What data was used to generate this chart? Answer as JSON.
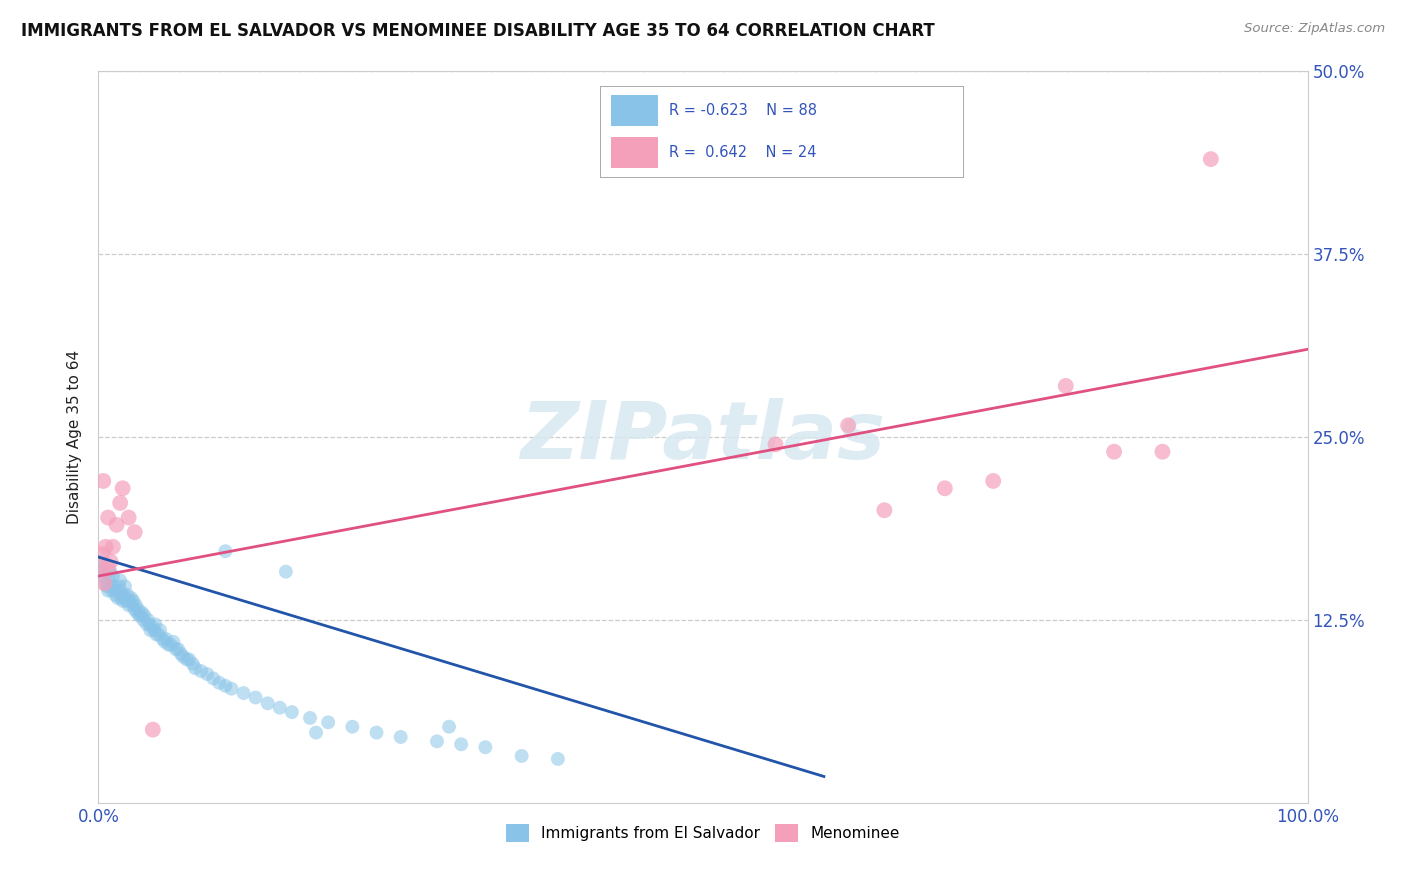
{
  "title": "IMMIGRANTS FROM EL SALVADOR VS MENOMINEE DISABILITY AGE 35 TO 64 CORRELATION CHART",
  "source": "Source: ZipAtlas.com",
  "ylabel": "Disability Age 35 to 64",
  "xlim": [
    0,
    1.0
  ],
  "ylim": [
    0,
    0.5
  ],
  "xticks": [
    0.0,
    1.0
  ],
  "xtick_labels": [
    "0.0%",
    "100.0%"
  ],
  "yticks": [
    0.0,
    0.125,
    0.25,
    0.375,
    0.5
  ],
  "ytick_labels_left": [
    "",
    "",
    "",
    "",
    ""
  ],
  "ytick_labels_right": [
    "",
    "12.5%",
    "25.0%",
    "37.5%",
    "50.0%"
  ],
  "color_blue": "#89c4e8",
  "color_pink": "#f4a0bb",
  "color_trendline_blue": "#2255aa",
  "color_trendline_pink": "#e05080",
  "legend_label1": "Immigrants from El Salvador",
  "legend_label2": "Menominee",
  "blue_x": [
    0.002,
    0.003,
    0.004,
    0.006,
    0.007,
    0.008,
    0.009,
    0.01,
    0.01,
    0.011,
    0.012,
    0.013,
    0.014,
    0.015,
    0.016,
    0.017,
    0.018,
    0.018,
    0.019,
    0.02,
    0.021,
    0.022,
    0.022,
    0.023,
    0.024,
    0.025,
    0.026,
    0.027,
    0.028,
    0.029,
    0.03,
    0.031,
    0.032,
    0.033,
    0.034,
    0.035,
    0.036,
    0.037,
    0.038,
    0.04,
    0.041,
    0.042,
    0.043,
    0.045,
    0.046,
    0.047,
    0.048,
    0.05,
    0.051,
    0.053,
    0.055,
    0.056,
    0.058,
    0.06,
    0.062,
    0.064,
    0.066,
    0.068,
    0.07,
    0.073,
    0.075,
    0.078,
    0.08,
    0.085,
    0.09,
    0.095,
    0.1,
    0.105,
    0.11,
    0.12,
    0.13,
    0.14,
    0.15,
    0.16,
    0.175,
    0.19,
    0.21,
    0.23,
    0.25,
    0.28,
    0.3,
    0.32,
    0.35,
    0.38,
    0.29,
    0.105,
    0.155,
    0.18
  ],
  "blue_y": [
    0.165,
    0.155,
    0.16,
    0.15,
    0.148,
    0.145,
    0.152,
    0.148,
    0.158,
    0.145,
    0.155,
    0.148,
    0.142,
    0.145,
    0.14,
    0.148,
    0.145,
    0.152,
    0.14,
    0.138,
    0.142,
    0.14,
    0.148,
    0.138,
    0.142,
    0.135,
    0.138,
    0.14,
    0.135,
    0.138,
    0.132,
    0.135,
    0.13,
    0.132,
    0.128,
    0.128,
    0.13,
    0.125,
    0.128,
    0.122,
    0.125,
    0.122,
    0.118,
    0.12,
    0.118,
    0.122,
    0.115,
    0.115,
    0.118,
    0.112,
    0.11,
    0.112,
    0.108,
    0.108,
    0.11,
    0.105,
    0.105,
    0.102,
    0.1,
    0.098,
    0.098,
    0.095,
    0.092,
    0.09,
    0.088,
    0.085,
    0.082,
    0.08,
    0.078,
    0.075,
    0.072,
    0.068,
    0.065,
    0.062,
    0.058,
    0.055,
    0.052,
    0.048,
    0.045,
    0.042,
    0.04,
    0.038,
    0.032,
    0.03,
    0.052,
    0.172,
    0.158,
    0.048
  ],
  "pink_x": [
    0.002,
    0.004,
    0.006,
    0.008,
    0.01,
    0.012,
    0.015,
    0.018,
    0.02,
    0.025,
    0.03,
    0.045,
    0.56,
    0.62,
    0.65,
    0.7,
    0.74,
    0.8,
    0.84,
    0.88,
    0.92,
    0.005,
    0.008,
    0.003
  ],
  "pink_y": [
    0.16,
    0.22,
    0.175,
    0.195,
    0.165,
    0.175,
    0.19,
    0.205,
    0.215,
    0.195,
    0.185,
    0.05,
    0.245,
    0.258,
    0.2,
    0.215,
    0.22,
    0.285,
    0.24,
    0.24,
    0.44,
    0.15,
    0.16,
    0.17
  ],
  "blue_trend_x0": 0.0,
  "blue_trend_y0": 0.168,
  "blue_trend_x1": 0.6,
  "blue_trend_y1": 0.018,
  "pink_trend_x0": 0.0,
  "pink_trend_y0": 0.155,
  "pink_trend_x1": 1.0,
  "pink_trend_y1": 0.31
}
